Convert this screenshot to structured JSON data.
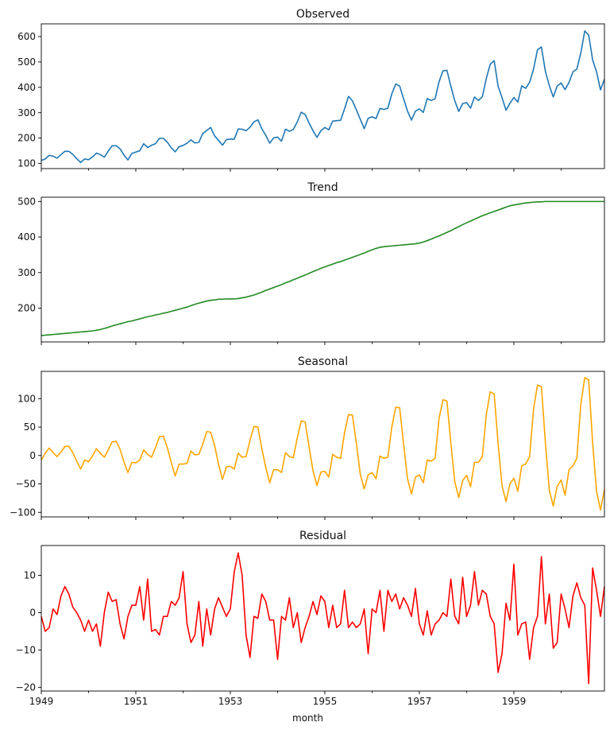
{
  "chart_data": [
    {
      "type": "line",
      "title": "Observed",
      "color": "#1f77b4",
      "x_start": "1949-01",
      "frequency": "monthly",
      "ylim": [
        80,
        650
      ],
      "yticks": [
        100,
        200,
        300,
        400,
        500,
        600
      ],
      "values": [
        112,
        118,
        132,
        129,
        121,
        135,
        148,
        148,
        136,
        119,
        104,
        118,
        115,
        126,
        141,
        135,
        125,
        149,
        170,
        170,
        158,
        133,
        114,
        140,
        145,
        150,
        178,
        163,
        172,
        178,
        199,
        199,
        184,
        162,
        146,
        166,
        171,
        180,
        193,
        181,
        183,
        218,
        230,
        242,
        209,
        191,
        172,
        194,
        196,
        196,
        236,
        235,
        229,
        243,
        264,
        272,
        237,
        211,
        180,
        201,
        204,
        188,
        235,
        227,
        234,
        264,
        302,
        293,
        259,
        229,
        203,
        229,
        242,
        233,
        267,
        269,
        270,
        315,
        364,
        347,
        312,
        274,
        237,
        278,
        284,
        277,
        317,
        313,
        318,
        374,
        413,
        405,
        355,
        306,
        271,
        306,
        315,
        301,
        356,
        348,
        355,
        422,
        465,
        467,
        404,
        347,
        305,
        336,
        340,
        318,
        362,
        348,
        363,
        435,
        491,
        505,
        404,
        359,
        310,
        337,
        360,
        342,
        406,
        396,
        420,
        472,
        548,
        559,
        463,
        407,
        362,
        405,
        417,
        391,
        419,
        461,
        472,
        535,
        622,
        606,
        508,
        461,
        390,
        432
      ]
    },
    {
      "type": "line",
      "title": "Trend",
      "color": "#228b22",
      "x_start": "1949-01",
      "frequency": "monthly",
      "ylim": [
        105,
        512
      ],
      "yticks": [
        200,
        300,
        400,
        500
      ],
      "values": [
        123,
        124,
        125,
        126,
        127,
        128,
        129,
        130,
        131,
        132,
        133,
        134,
        135,
        136,
        138,
        140,
        143,
        146,
        150,
        153,
        156,
        159,
        162,
        164,
        167,
        170,
        173,
        176,
        178,
        181,
        183,
        186,
        188,
        191,
        194,
        197,
        200,
        203,
        207,
        211,
        214,
        217,
        220,
        222,
        223,
        225,
        225,
        226,
        226,
        226,
        227,
        229,
        231,
        234,
        237,
        241,
        245,
        250,
        254,
        258,
        262,
        266,
        271,
        275,
        280,
        284,
        289,
        293,
        298,
        303,
        307,
        312,
        316,
        320,
        324,
        328,
        331,
        335,
        339,
        343,
        347,
        351,
        355,
        360,
        364,
        368,
        371,
        373,
        374,
        375,
        376,
        377,
        378,
        379,
        380,
        381,
        383,
        386,
        390,
        394,
        399,
        403,
        408,
        413,
        418,
        424,
        429,
        435,
        440,
        445,
        450,
        455,
        460,
        464,
        468,
        472,
        476,
        480,
        484,
        488,
        490,
        492,
        494,
        496,
        497,
        498,
        499,
        499,
        500,
        500,
        500,
        500,
        500,
        500,
        500,
        500,
        500,
        500,
        500,
        500,
        500,
        500,
        500,
        500
      ]
    },
    {
      "type": "line",
      "title": "Seasonal",
      "color": "#ffa500",
      "x_start": "1949-01",
      "frequency": "monthly",
      "ylim": [
        -108,
        148
      ],
      "yticks": [
        -100,
        -50,
        0,
        50,
        100
      ],
      "values": [
        -8,
        4,
        13,
        5,
        -2,
        6,
        16,
        16,
        5,
        -10,
        -24,
        -8,
        -11,
        -1,
        12,
        4,
        -3,
        10,
        24,
        25,
        11,
        -12,
        -30,
        -12,
        -13,
        -8,
        10,
        2,
        -3,
        14,
        33,
        34,
        14,
        -12,
        -36,
        -15,
        -15,
        -14,
        8,
        1,
        2,
        20,
        42,
        41,
        18,
        -15,
        -42,
        -20,
        -19,
        -24,
        4,
        -3,
        -2,
        27,
        51,
        50,
        12,
        -21,
        -48,
        -25,
        -25,
        -30,
        5,
        -2,
        -4,
        31,
        61,
        59,
        15,
        -27,
        -53,
        -29,
        -28,
        -38,
        2,
        -3,
        -5,
        40,
        72,
        71,
        22,
        -33,
        -59,
        -34,
        -30,
        -41,
        -1,
        -5,
        -3,
        50,
        85,
        84,
        20,
        -41,
        -68,
        -38,
        -34,
        -48,
        -8,
        -10,
        -5,
        65,
        98,
        96,
        22,
        -46,
        -74,
        -44,
        -35,
        -55,
        -12,
        -12,
        -2,
        72,
        112,
        108,
        21,
        -53,
        -81,
        -50,
        -40,
        -63,
        -18,
        -15,
        -2,
        82,
        124,
        121,
        23,
        -61,
        -89,
        -54,
        -43,
        -70,
        -25,
        -18,
        -5,
        90,
        137,
        133,
        22,
        -63,
        -96,
        -60
      ]
    },
    {
      "type": "line",
      "title": "Residual",
      "color": "#ff0000",
      "x_start": "1949-01",
      "frequency": "monthly",
      "ylim": [
        -21,
        18
      ],
      "yticks": [
        -20,
        -10,
        0,
        10
      ],
      "values": [
        -1,
        -5,
        -4,
        1,
        -0.5,
        4.5,
        7,
        5,
        1.5,
        0,
        -2,
        -5,
        -2,
        -5,
        -3,
        -9,
        0,
        5.5,
        3,
        3.5,
        -3,
        -7,
        -1,
        2,
        2,
        7,
        -2,
        9,
        -5,
        -4.5,
        -6,
        -1,
        -1,
        3,
        2,
        4,
        11,
        -3,
        -8,
        -6,
        3,
        -9,
        1,
        -6,
        1,
        4,
        1.5,
        -1,
        1,
        11,
        16,
        10,
        -6,
        -12,
        -1,
        -1.5,
        5,
        3,
        -2,
        -2,
        -12.5,
        -1,
        -2,
        4,
        -4,
        0,
        -8,
        -4,
        -1,
        3,
        -0.5,
        4.5,
        3,
        -4,
        2,
        -4,
        -3,
        6,
        -4,
        -2.5,
        -4,
        -3,
        1,
        -11,
        1,
        0,
        6,
        -5,
        6,
        3,
        5,
        1,
        4,
        2,
        -1,
        6.5,
        -3,
        -6,
        0.5,
        -6,
        -3,
        -2,
        0,
        -1,
        9,
        -1,
        -3,
        9.5,
        -1,
        2,
        11,
        2,
        6,
        5,
        -1,
        -3,
        -16,
        -11,
        2.5,
        -2,
        13,
        -6,
        -3,
        -2.5,
        -12.5,
        -4,
        -1,
        15,
        -3,
        5,
        -9.5,
        -8,
        5,
        1,
        -4,
        4.5,
        8,
        4,
        2,
        -19,
        12,
        6,
        -1,
        7
      ]
    }
  ],
  "xaxis": {
    "label": "month",
    "ticks": [
      "1949",
      "1951",
      "1953",
      "1955",
      "1957",
      "1959"
    ]
  }
}
